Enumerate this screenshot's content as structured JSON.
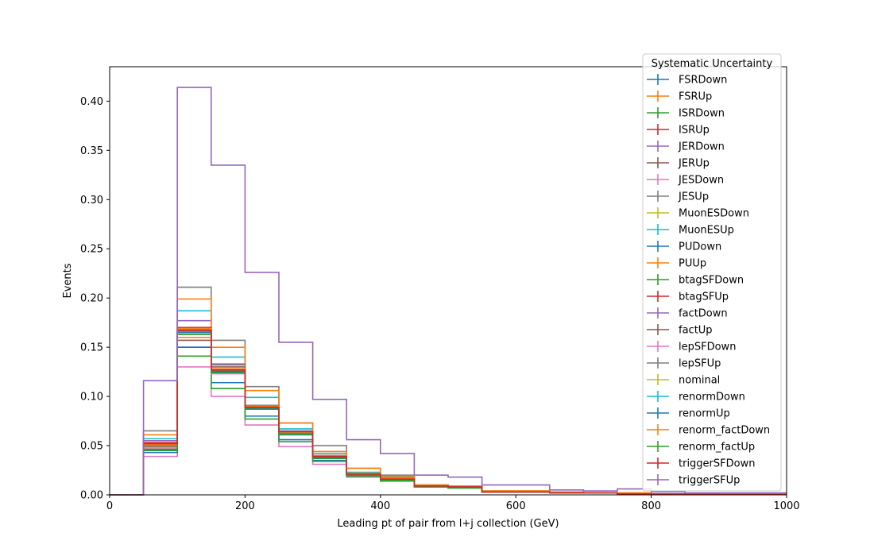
{
  "chart_data": {
    "type": "line",
    "style": "step-histogram",
    "xlabel": "Leading pt of pair from l+j collection (GeV)",
    "ylabel": "Events",
    "xlim": [
      0,
      1000
    ],
    "ylim": [
      0,
      0.435
    ],
    "x_ticks": [
      0,
      200,
      400,
      600,
      800,
      1000
    ],
    "y_ticks": [
      0.0,
      0.05,
      0.1,
      0.15,
      0.2,
      0.25,
      0.3,
      0.35,
      0.4
    ],
    "y_tick_labels": [
      "0.00",
      "0.05",
      "0.10",
      "0.15",
      "0.20",
      "0.25",
      "0.30",
      "0.35",
      "0.40"
    ],
    "bin_edges": [
      0,
      50,
      100,
      150,
      200,
      250,
      300,
      350,
      400,
      450,
      500,
      550,
      600,
      650,
      700,
      750,
      800,
      850,
      900,
      950,
      1000
    ],
    "grid": false,
    "legend": {
      "title": "Systematic Uncertainty",
      "placement": "upper-right"
    },
    "series": [
      {
        "name": "FSRDown",
        "color": "#1f77b4",
        "values": [
          0,
          0.048,
          0.15,
          0.124,
          0.088,
          0.064,
          0.038,
          0.021,
          0.016,
          0.009,
          0.008,
          0.003,
          0.003,
          0.002,
          0.002,
          0.001,
          0.001,
          0.0005,
          0.0005,
          0.0005
        ]
      },
      {
        "name": "FSRUp",
        "color": "#ff7f0e",
        "values": [
          0,
          0.047,
          0.16,
          0.126,
          0.088,
          0.063,
          0.039,
          0.021,
          0.017,
          0.009,
          0.008,
          0.003,
          0.003,
          0.002,
          0.002,
          0.001,
          0.001,
          0.0005,
          0.0005,
          0.0005
        ]
      },
      {
        "name": "ISRDown",
        "color": "#2ca02c",
        "values": [
          0,
          0.047,
          0.166,
          0.126,
          0.088,
          0.063,
          0.038,
          0.021,
          0.016,
          0.009,
          0.008,
          0.003,
          0.003,
          0.002,
          0.002,
          0.001,
          0.001,
          0.0005,
          0.0005,
          0.0005
        ]
      },
      {
        "name": "ISRUp",
        "color": "#d62728",
        "values": [
          0,
          0.05,
          0.168,
          0.128,
          0.09,
          0.064,
          0.039,
          0.022,
          0.016,
          0.009,
          0.008,
          0.003,
          0.003,
          0.002,
          0.002,
          0.001,
          0.001,
          0.0005,
          0.0005,
          0.0005
        ]
      },
      {
        "name": "JERDown",
        "color": "#9467bd",
        "values": [
          0,
          0.055,
          0.177,
          0.132,
          0.091,
          0.065,
          0.04,
          0.022,
          0.017,
          0.009,
          0.008,
          0.003,
          0.003,
          0.002,
          0.002,
          0.001,
          0.001,
          0.0005,
          0.0005,
          0.0005
        ]
      },
      {
        "name": "JERUp",
        "color": "#8c564b",
        "values": [
          0,
          0.049,
          0.157,
          0.13,
          0.09,
          0.063,
          0.039,
          0.021,
          0.016,
          0.009,
          0.008,
          0.003,
          0.003,
          0.002,
          0.002,
          0.001,
          0.001,
          0.0005,
          0.0005,
          0.0005
        ]
      },
      {
        "name": "JESDown",
        "color": "#e377c2",
        "values": [
          0,
          0.039,
          0.13,
          0.1,
          0.071,
          0.049,
          0.031,
          0.018,
          0.014,
          0.008,
          0.007,
          0.003,
          0.003,
          0.002,
          0.002,
          0.001,
          0.001,
          0.0005,
          0.0005,
          0.0005
        ]
      },
      {
        "name": "JESUp",
        "color": "#7f7f7f",
        "values": [
          0,
          0.065,
          0.211,
          0.157,
          0.11,
          0.073,
          0.05,
          0.027,
          0.02,
          0.01,
          0.009,
          0.004,
          0.004,
          0.003,
          0.002,
          0.002,
          0.001,
          0.001,
          0.0005,
          0.0005
        ]
      },
      {
        "name": "MuonESDown",
        "color": "#bcbd22",
        "values": [
          0,
          0.048,
          0.165,
          0.127,
          0.089,
          0.063,
          0.039,
          0.021,
          0.016,
          0.009,
          0.008,
          0.003,
          0.003,
          0.002,
          0.002,
          0.001,
          0.001,
          0.0005,
          0.0005,
          0.0005
        ]
      },
      {
        "name": "MuonESUp",
        "color": "#17becf",
        "values": [
          0,
          0.057,
          0.187,
          0.14,
          0.099,
          0.067,
          0.042,
          0.023,
          0.018,
          0.009,
          0.008,
          0.003,
          0.003,
          0.002,
          0.002,
          0.001,
          0.001,
          0.0005,
          0.0005,
          0.0005
        ]
      },
      {
        "name": "PUDown",
        "color": "#1f77b4",
        "values": [
          0,
          0.043,
          0.15,
          0.114,
          0.08,
          0.056,
          0.035,
          0.019,
          0.015,
          0.008,
          0.007,
          0.003,
          0.003,
          0.002,
          0.002,
          0.001,
          0.001,
          0.0005,
          0.0005,
          0.0005
        ]
      },
      {
        "name": "PUUp",
        "color": "#ff7f0e",
        "values": [
          0,
          0.061,
          0.199,
          0.15,
          0.106,
          0.073,
          0.044,
          0.027,
          0.019,
          0.01,
          0.009,
          0.004,
          0.004,
          0.003,
          0.002,
          0.002,
          0.001,
          0.001,
          0.0005,
          0.0005
        ]
      },
      {
        "name": "btagSFDown",
        "color": "#2ca02c",
        "values": [
          0,
          0.045,
          0.141,
          0.108,
          0.077,
          0.054,
          0.034,
          0.019,
          0.014,
          0.008,
          0.007,
          0.003,
          0.003,
          0.002,
          0.002,
          0.001,
          0.001,
          0.0005,
          0.0005,
          0.0005
        ]
      },
      {
        "name": "btagSFUp",
        "color": "#d62728",
        "values": [
          0,
          0.053,
          0.17,
          0.128,
          0.09,
          0.064,
          0.039,
          0.022,
          0.017,
          0.009,
          0.008,
          0.003,
          0.003,
          0.002,
          0.002,
          0.001,
          0.001,
          0.0005,
          0.0005,
          0.0005
        ]
      },
      {
        "name": "factDown",
        "color": "#9467bd",
        "values": [
          0,
          0.048,
          0.168,
          0.126,
          0.089,
          0.063,
          0.039,
          0.021,
          0.016,
          0.009,
          0.008,
          0.003,
          0.003,
          0.002,
          0.002,
          0.001,
          0.001,
          0.0005,
          0.0005,
          0.0005
        ]
      },
      {
        "name": "factUp",
        "color": "#8c564b",
        "values": [
          0,
          0.05,
          0.165,
          0.126,
          0.088,
          0.062,
          0.038,
          0.021,
          0.016,
          0.009,
          0.008,
          0.003,
          0.003,
          0.002,
          0.002,
          0.001,
          0.001,
          0.0005,
          0.0005,
          0.0005
        ]
      },
      {
        "name": "lepSFDown",
        "color": "#e377c2",
        "values": [
          0,
          0.047,
          0.163,
          0.123,
          0.087,
          0.062,
          0.038,
          0.021,
          0.016,
          0.009,
          0.008,
          0.003,
          0.003,
          0.002,
          0.002,
          0.001,
          0.001,
          0.0005,
          0.0005,
          0.0005
        ]
      },
      {
        "name": "lepSFUp",
        "color": "#7f7f7f",
        "values": [
          0,
          0.05,
          0.168,
          0.133,
          0.091,
          0.064,
          0.039,
          0.022,
          0.017,
          0.009,
          0.008,
          0.003,
          0.003,
          0.002,
          0.002,
          0.001,
          0.001,
          0.0005,
          0.0005,
          0.0005
        ]
      },
      {
        "name": "nominal",
        "color": "#bcbd22",
        "values": [
          0,
          0.048,
          0.166,
          0.127,
          0.089,
          0.063,
          0.039,
          0.021,
          0.016,
          0.009,
          0.008,
          0.003,
          0.003,
          0.002,
          0.002,
          0.001,
          0.001,
          0.0005,
          0.0005,
          0.0005
        ]
      },
      {
        "name": "renormDown",
        "color": "#17becf",
        "values": [
          0,
          0.051,
          0.166,
          0.127,
          0.09,
          0.064,
          0.039,
          0.022,
          0.016,
          0.009,
          0.008,
          0.003,
          0.003,
          0.002,
          0.002,
          0.001,
          0.001,
          0.0005,
          0.0005,
          0.0005
        ]
      },
      {
        "name": "renormUp",
        "color": "#1f77b4",
        "values": [
          0,
          0.046,
          0.165,
          0.125,
          0.088,
          0.062,
          0.038,
          0.021,
          0.016,
          0.009,
          0.008,
          0.003,
          0.003,
          0.002,
          0.002,
          0.001,
          0.001,
          0.0005,
          0.0005,
          0.0005
        ]
      },
      {
        "name": "renorm_factDown",
        "color": "#ff7f0e",
        "values": [
          0,
          0.051,
          0.169,
          0.128,
          0.09,
          0.064,
          0.04,
          0.022,
          0.017,
          0.009,
          0.008,
          0.003,
          0.003,
          0.002,
          0.002,
          0.001,
          0.001,
          0.0005,
          0.0005,
          0.0005
        ]
      },
      {
        "name": "renorm_factUp",
        "color": "#2ca02c",
        "values": [
          0,
          0.045,
          0.163,
          0.124,
          0.087,
          0.061,
          0.037,
          0.02,
          0.015,
          0.008,
          0.007,
          0.003,
          0.003,
          0.002,
          0.002,
          0.001,
          0.001,
          0.0005,
          0.0005,
          0.0005
        ]
      },
      {
        "name": "triggerSFDown",
        "color": "#d62728",
        "values": [
          0,
          0.052,
          0.167,
          0.127,
          0.089,
          0.064,
          0.039,
          0.021,
          0.016,
          0.009,
          0.008,
          0.003,
          0.003,
          0.002,
          0.002,
          0.001,
          0.001,
          0.0005,
          0.0005,
          0.0005
        ]
      },
      {
        "name": "triggerSFUp",
        "color": "#9467bd",
        "values": [
          0,
          0.116,
          0.414,
          0.335,
          0.226,
          0.155,
          0.097,
          0.056,
          0.042,
          0.02,
          0.018,
          0.01,
          0.01,
          0.005,
          0.004,
          0.006,
          0.003,
          0.002,
          0.002,
          0.002
        ]
      }
    ]
  }
}
